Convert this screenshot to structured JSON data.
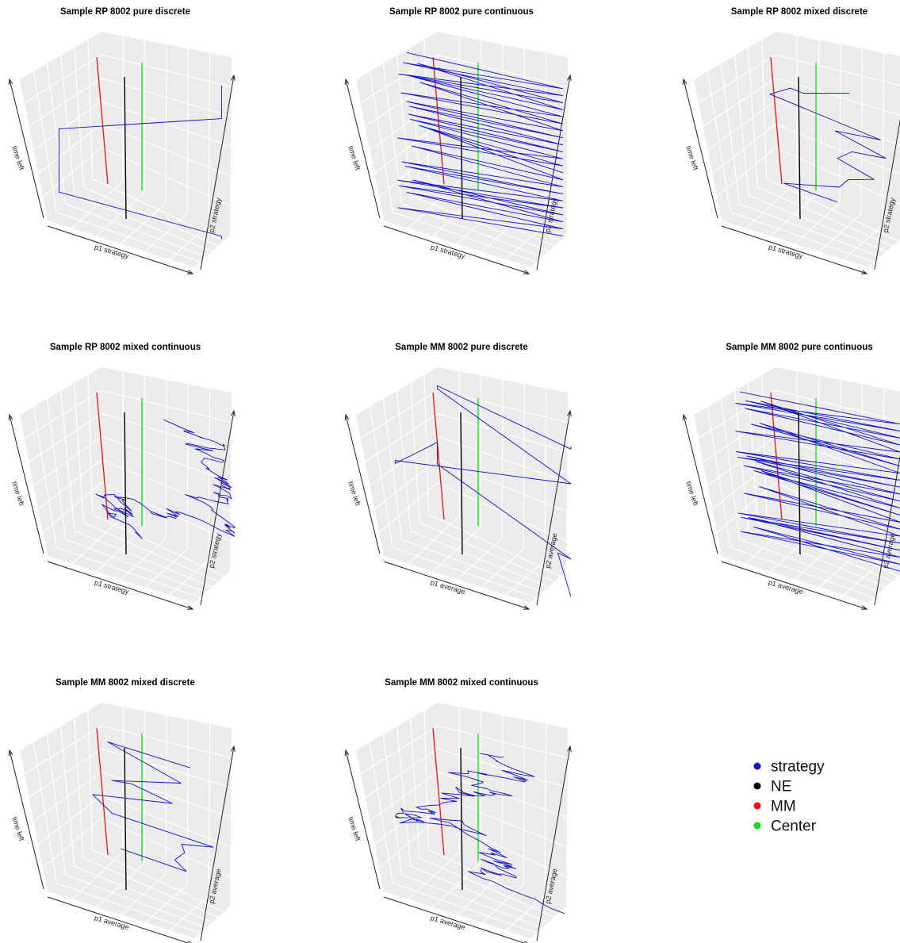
{
  "figure": {
    "legend": {
      "position": "bottom-right",
      "entries": [
        {
          "label": "strategy",
          "color": "#1010c8"
        },
        {
          "label": "NE",
          "color": "#000000"
        },
        {
          "label": "MM",
          "color": "#ee1111"
        },
        {
          "label": "Center",
          "color": "#11dd11"
        }
      ]
    }
  },
  "chart_data": [
    {
      "type": "line3d",
      "title": "Sample RP 8002 pure discrete",
      "xlabel": "p1 strategy",
      "ylabel": "p2 strategy",
      "zlabel": "time left",
      "grid": true,
      "style": "pure-discrete"
    },
    {
      "type": "line3d",
      "title": "Sample RP 8002 pure continuous",
      "xlabel": "p1 strategy",
      "ylabel": "p2 strategy",
      "zlabel": "time left",
      "grid": true,
      "style": "pure-continuous"
    },
    {
      "type": "line3d",
      "title": "Sample RP 8002 mixed discrete",
      "xlabel": "p1 strategy",
      "ylabel": "p2 strategy",
      "zlabel": "time left",
      "grid": true,
      "style": "mixed-discrete"
    },
    {
      "type": "line3d",
      "title": "Sample RP 8002 mixed continuous",
      "xlabel": "p1 strategy",
      "ylabel": "p2 strategy",
      "zlabel": "time left",
      "grid": true,
      "style": "mixed-continuous"
    },
    {
      "type": "line3d",
      "title": "Sample MM 8002 pure discrete",
      "xlabel": "p1 average",
      "ylabel": "p2 average",
      "zlabel": "time left",
      "grid": true,
      "style": "pure-discrete"
    },
    {
      "type": "line3d",
      "title": "Sample MM 8002 pure continuous",
      "xlabel": "p1 average",
      "ylabel": "p2 average",
      "zlabel": "time left",
      "grid": true,
      "style": "pure-continuous"
    },
    {
      "type": "line3d",
      "title": "Sample MM 8002 mixed discrete",
      "xlabel": "p1 average",
      "ylabel": "p2 average",
      "zlabel": "time left",
      "grid": true,
      "style": "mixed-discrete"
    },
    {
      "type": "line3d",
      "title": "Sample MM 8002 mixed continuous",
      "xlabel": "p1 average",
      "ylabel": "p2 average",
      "zlabel": "time left",
      "grid": true,
      "style": "mixed-continuous"
    }
  ]
}
